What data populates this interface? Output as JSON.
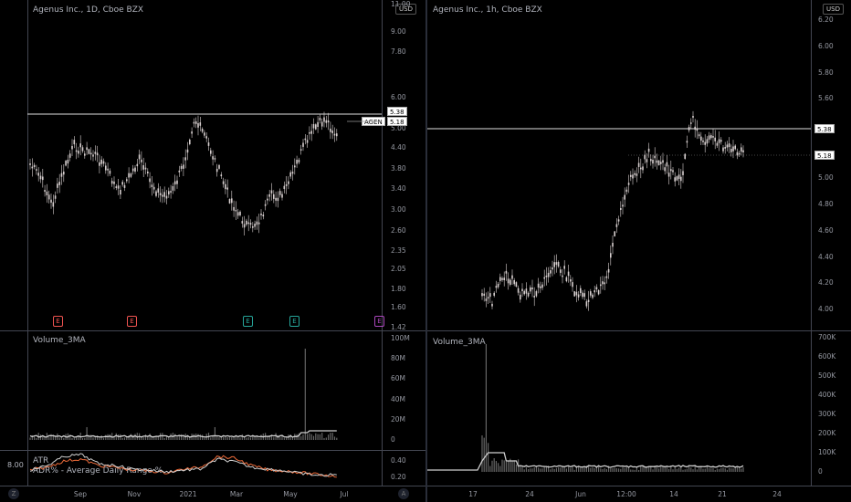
{
  "left_chart": {
    "title": "Agenus Inc., 1D, Cboe BZX",
    "currency": "USD",
    "price_ticks": [
      "11.00",
      "9.00",
      "7.80",
      "6.00",
      "5.00",
      "4.40",
      "3.80",
      "3.40",
      "3.00",
      "2.60",
      "2.35",
      "2.05",
      "1.80",
      "1.60",
      "1.42"
    ],
    "price_tick_values": [
      11.0,
      9.0,
      7.8,
      6.0,
      5.0,
      4.4,
      3.8,
      3.4,
      3.0,
      2.6,
      2.35,
      2.05,
      1.8,
      1.6,
      1.42
    ],
    "label_538": "5.38",
    "label_ticker": "AGEN",
    "label_518": "5.18",
    "earnings_badges": [
      {
        "label": "E",
        "color": "#ef5350"
      },
      {
        "label": "E",
        "color": "#ef5350"
      },
      {
        "label": "E",
        "color": "#26a69a"
      },
      {
        "label": "E",
        "color": "#26a69a"
      },
      {
        "label": "E",
        "color": "#ab47bc"
      }
    ],
    "volume_title": "Volume_3MA",
    "volume_ticks": [
      "100M",
      "80M",
      "60M",
      "40M",
      "20M",
      "0"
    ],
    "atr_title": "ATR",
    "adr_title": "ADR% - Average Daily Range %",
    "atr_left_value": "8.00",
    "atr_ticks": [
      "0.40",
      "0.20"
    ],
    "x_ticks": [
      "Sep",
      "Nov",
      "2021",
      "Mar",
      "May",
      "Jul"
    ],
    "corner_buttons": [
      "Z",
      "A"
    ]
  },
  "right_chart": {
    "title": "Agenus Inc., 1h, Cboe BZX",
    "currency": "USD",
    "price_ticks": [
      "6.20",
      "6.00",
      "5.80",
      "5.60",
      "5.38",
      "5.18",
      "5.00",
      "4.80",
      "4.60",
      "4.40",
      "4.20",
      "4.00"
    ],
    "label_538": "5.38",
    "label_518": "5.18",
    "volume_title": "Volume_3MA",
    "volume_ticks": [
      "700K",
      "600K",
      "500K",
      "400K",
      "300K",
      "200K",
      "100K",
      "0"
    ],
    "x_ticks": [
      "17",
      "24",
      "Jun",
      "12:00",
      "14",
      "21",
      "24"
    ]
  },
  "colors": {
    "background": "#000000",
    "candle": "#d8d0d0",
    "atr_line": "#ef6c3a",
    "adr_line": "#d0d0d0",
    "price_line": "#e0e0e0"
  }
}
